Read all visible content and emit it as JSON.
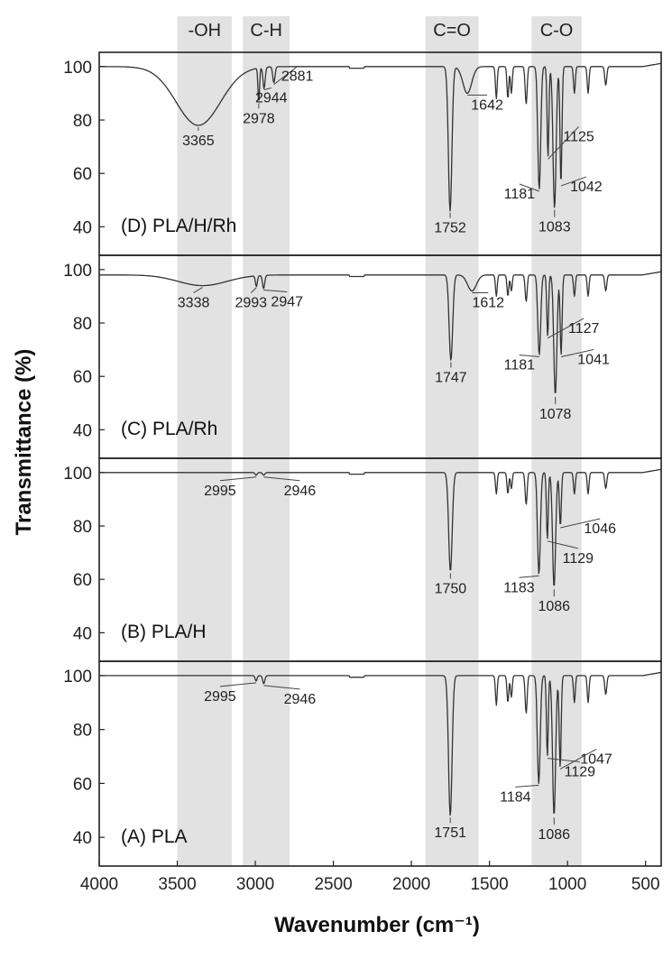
{
  "chart_data": {
    "type": "line",
    "xlabel": "Wavenumber (cm⁻¹)",
    "ylabel": "Transmittance (%)",
    "xlim": [
      4000,
      400
    ],
    "x_reversed": true,
    "ylim": [
      30,
      104
    ],
    "x_ticks": [
      4000,
      3500,
      3000,
      2500,
      2000,
      1500,
      1000,
      500
    ],
    "y_ticks": [
      40,
      60,
      80,
      100
    ],
    "bands": [
      {
        "label": "-OH",
        "from": 3500,
        "to": 3150
      },
      {
        "label": "C-H",
        "from": 3080,
        "to": 2780
      },
      {
        "label": "C=O",
        "from": 1910,
        "to": 1570
      },
      {
        "label": "C-O",
        "from": 1230,
        "to": 910
      }
    ],
    "panels": [
      {
        "name": "(D) PLA/H/Rh",
        "baseline": 100,
        "peaks": [
          {
            "wn": 3365,
            "y": 78,
            "w": 200
          },
          {
            "wn": 2978,
            "y": 87,
            "w": 7
          },
          {
            "wn": 2944,
            "y": 92,
            "w": 10
          },
          {
            "wn": 2881,
            "y": 94,
            "w": 10
          },
          {
            "wn": 1752,
            "y": 46,
            "w": 16
          },
          {
            "wn": 1642,
            "y": 90,
            "w": 40
          },
          {
            "wn": 1456,
            "y": 88,
            "w": 8
          },
          {
            "wn": 1382,
            "y": 88,
            "w": 8
          },
          {
            "wn": 1360,
            "y": 90,
            "w": 8
          },
          {
            "wn": 1265,
            "y": 86,
            "w": 9
          },
          {
            "wn": 1181,
            "y": 54,
            "w": 13
          },
          {
            "wn": 1125,
            "y": 66,
            "w": 8
          },
          {
            "wn": 1083,
            "y": 47,
            "w": 14
          },
          {
            "wn": 1042,
            "y": 56,
            "w": 9
          },
          {
            "wn": 956,
            "y": 90,
            "w": 8
          },
          {
            "wn": 868,
            "y": 90,
            "w": 8
          },
          {
            "wn": 755,
            "y": 93,
            "w": 9
          }
        ],
        "labels": [
          {
            "text": "3365",
            "wn": 3365,
            "y": 78
          },
          {
            "text": "2978",
            "wn": 2978,
            "y": 87
          },
          {
            "text": "2944",
            "wn": 2944,
            "y": 92
          },
          {
            "text": "2881",
            "wn": 2881,
            "y": 94
          },
          {
            "text": "1752",
            "wn": 1752,
            "y": 46
          },
          {
            "text": "1642",
            "wn": 1642,
            "y": 90
          },
          {
            "text": "1181",
            "wn": 1181,
            "y": 54
          },
          {
            "text": "1125",
            "wn": 1125,
            "y": 66
          },
          {
            "text": "1083",
            "wn": 1083,
            "y": 47
          },
          {
            "text": "1042",
            "wn": 1042,
            "y": 56
          }
        ]
      },
      {
        "name": "(C) PLA/Rh",
        "baseline": 98,
        "peaks": [
          {
            "wn": 3338,
            "y": 94,
            "w": 220
          },
          {
            "wn": 2993,
            "y": 94,
            "w": 9
          },
          {
            "wn": 2947,
            "y": 93,
            "w": 10
          },
          {
            "wn": 1747,
            "y": 66,
            "w": 16
          },
          {
            "wn": 1612,
            "y": 92,
            "w": 40
          },
          {
            "wn": 1456,
            "y": 90,
            "w": 8
          },
          {
            "wn": 1382,
            "y": 90,
            "w": 8
          },
          {
            "wn": 1360,
            "y": 92,
            "w": 8
          },
          {
            "wn": 1265,
            "y": 88,
            "w": 9
          },
          {
            "wn": 1181,
            "y": 68,
            "w": 13
          },
          {
            "wn": 1127,
            "y": 75,
            "w": 8
          },
          {
            "wn": 1078,
            "y": 53,
            "w": 14
          },
          {
            "wn": 1041,
            "y": 68,
            "w": 9
          },
          {
            "wn": 956,
            "y": 90,
            "w": 8
          },
          {
            "wn": 868,
            "y": 90,
            "w": 8
          },
          {
            "wn": 755,
            "y": 92,
            "w": 9
          }
        ],
        "labels": [
          {
            "text": "3338",
            "wn": 3338,
            "y": 94
          },
          {
            "text": "2993",
            "wn": 2993,
            "y": 94
          },
          {
            "text": "2947",
            "wn": 2947,
            "y": 93
          },
          {
            "text": "1747",
            "wn": 1747,
            "y": 66
          },
          {
            "text": "1612",
            "wn": 1612,
            "y": 92
          },
          {
            "text": "1181",
            "wn": 1181,
            "y": 68
          },
          {
            "text": "1127",
            "wn": 1127,
            "y": 75
          },
          {
            "text": "1078",
            "wn": 1078,
            "y": 53
          },
          {
            "text": "1041",
            "wn": 1041,
            "y": 68
          }
        ]
      },
      {
        "name": "(B) PLA/H",
        "baseline": 100,
        "peaks": [
          {
            "wn": 2995,
            "y": 99,
            "w": 9
          },
          {
            "wn": 2946,
            "y": 99,
            "w": 10
          },
          {
            "wn": 1750,
            "y": 63,
            "w": 16
          },
          {
            "wn": 1456,
            "y": 92,
            "w": 8
          },
          {
            "wn": 1382,
            "y": 92,
            "w": 8
          },
          {
            "wn": 1360,
            "y": 94,
            "w": 8
          },
          {
            "wn": 1265,
            "y": 88,
            "w": 9
          },
          {
            "wn": 1183,
            "y": 62,
            "w": 13
          },
          {
            "wn": 1129,
            "y": 75,
            "w": 8
          },
          {
            "wn": 1086,
            "y": 57,
            "w": 14
          },
          {
            "wn": 1046,
            "y": 80,
            "w": 9
          },
          {
            "wn": 956,
            "y": 92,
            "w": 8
          },
          {
            "wn": 868,
            "y": 92,
            "w": 8
          },
          {
            "wn": 755,
            "y": 94,
            "w": 9
          }
        ],
        "labels": [
          {
            "text": "2995",
            "wn": 2995,
            "y": 99
          },
          {
            "text": "2946",
            "wn": 2946,
            "y": 99
          },
          {
            "text": "1750",
            "wn": 1750,
            "y": 63
          },
          {
            "text": "1183",
            "wn": 1183,
            "y": 62
          },
          {
            "text": "1129",
            "wn": 1129,
            "y": 75
          },
          {
            "text": "1086",
            "wn": 1086,
            "y": 57
          },
          {
            "text": "1046",
            "wn": 1046,
            "y": 80
          }
        ]
      },
      {
        "name": "(A) PLA",
        "baseline": 100,
        "peaks": [
          {
            "wn": 2995,
            "y": 98,
            "w": 9
          },
          {
            "wn": 2946,
            "y": 97,
            "w": 10
          },
          {
            "wn": 1751,
            "y": 48,
            "w": 16
          },
          {
            "wn": 1456,
            "y": 89,
            "w": 8
          },
          {
            "wn": 1382,
            "y": 90,
            "w": 8
          },
          {
            "wn": 1360,
            "y": 92,
            "w": 8
          },
          {
            "wn": 1265,
            "y": 86,
            "w": 9
          },
          {
            "wn": 1184,
            "y": 60,
            "w": 13
          },
          {
            "wn": 1129,
            "y": 70,
            "w": 8
          },
          {
            "wn": 1086,
            "y": 48,
            "w": 14
          },
          {
            "wn": 1047,
            "y": 66,
            "w": 9
          },
          {
            "wn": 956,
            "y": 90,
            "w": 8
          },
          {
            "wn": 868,
            "y": 90,
            "w": 8
          },
          {
            "wn": 755,
            "y": 93,
            "w": 9
          }
        ],
        "labels": [
          {
            "text": "2995",
            "wn": 2995,
            "y": 98
          },
          {
            "text": "2946",
            "wn": 2946,
            "y": 97
          },
          {
            "text": "1751",
            "wn": 1751,
            "y": 48
          },
          {
            "text": "1184",
            "wn": 1184,
            "y": 60
          },
          {
            "text": "1129",
            "wn": 1129,
            "y": 70
          },
          {
            "text": "1086",
            "wn": 1086,
            "y": 48
          },
          {
            "text": "1047",
            "wn": 1047,
            "y": 66
          }
        ]
      }
    ],
    "colors": {
      "band": "#e2e2e2",
      "line": "#333333",
      "frame": "#222222"
    }
  }
}
